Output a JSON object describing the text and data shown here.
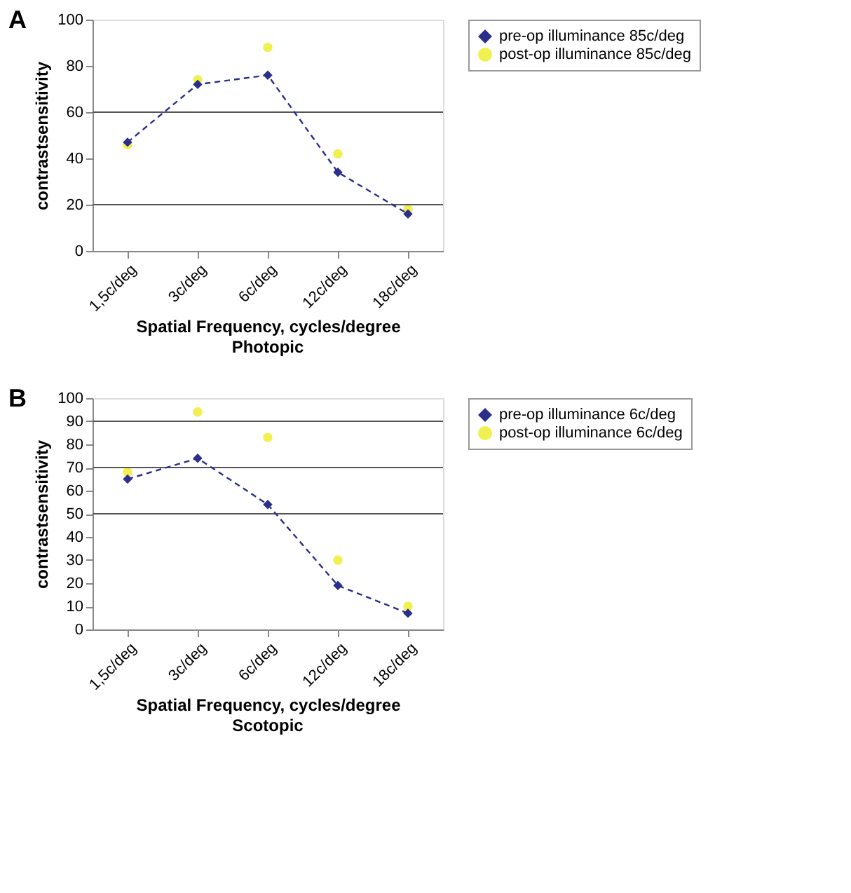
{
  "chart_data": [
    {
      "type": "line",
      "annotations": [
        "A"
      ],
      "xlabel": "Spatial Frequency, cycles/degree",
      "subtitle": "Photopic",
      "ylabel": "contrastsensitivity",
      "categories": [
        "1,5c/deg",
        "3c/deg",
        "6c/deg",
        "12c/deg",
        "18c/deg"
      ],
      "series": [
        {
          "name": "pre-op illuminance 85c/deg",
          "color": "#2b2f8c",
          "type": "line",
          "line_style": "dashed",
          "marker": "diamond",
          "values": [
            47,
            72,
            76,
            34,
            16
          ]
        },
        {
          "name": "post-op illuminance 85c/deg",
          "color": "#f0f050",
          "type": "scatter",
          "marker": "circle",
          "values": [
            46,
            74,
            88,
            42,
            18
          ]
        }
      ],
      "ylim": [
        0,
        100
      ],
      "yticks": [
        0,
        20,
        40,
        60,
        80,
        100
      ],
      "ref_lines": [
        {
          "axis": "y",
          "value": 20,
          "color": "#555555"
        },
        {
          "axis": "y",
          "value": 60,
          "color": "#555555"
        }
      ],
      "legend": "right"
    },
    {
      "type": "line",
      "annotations": [
        "B"
      ],
      "xlabel": "Spatial Frequency, cycles/degree",
      "subtitle": "Scotopic",
      "ylabel": "contrastsensitivity",
      "categories": [
        "1,5c/deg",
        "3c/deg",
        "6c/deg",
        "12c/deg",
        "18c/deg"
      ],
      "series": [
        {
          "name": "pre-op illuminance 6c/deg",
          "color": "#2b2f8c",
          "type": "line",
          "line_style": "dashed",
          "marker": "diamond",
          "values": [
            65,
            74,
            54,
            19,
            7
          ]
        },
        {
          "name": "post-op illuminance 6c/deg",
          "color": "#f0f050",
          "type": "scatter",
          "marker": "circle",
          "values": [
            68,
            94,
            83,
            30,
            10
          ]
        }
      ],
      "ylim": [
        0,
        100
      ],
      "yticks": [
        0,
        10,
        20,
        30,
        40,
        50,
        60,
        70,
        80,
        90,
        100
      ],
      "ref_lines": [
        {
          "axis": "y",
          "value": 50,
          "color": "#555555"
        },
        {
          "axis": "y",
          "value": 70,
          "color": "#555555"
        },
        {
          "axis": "y",
          "value": 90,
          "color": "#555555"
        }
      ],
      "legend": "right"
    }
  ]
}
